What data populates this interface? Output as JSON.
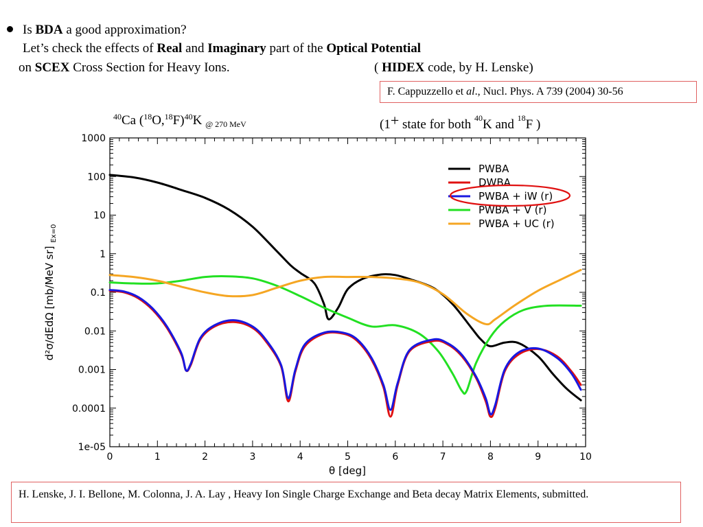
{
  "header": {
    "l1_is": "Is",
    "l1_bda": "BDA",
    "l1_rest": "a good approximation?",
    "l2_pre": "Let’s check the effects of",
    "l2_real": "Real",
    "l2_and": "and",
    "l2_imag": "Imaginary",
    "l2_mid": "part of the",
    "l2_opt": "Optical Potential",
    "l3_on": "on",
    "l3_scex": "SCEX",
    "l3_rest": "Cross Section for Heavy Ions.",
    "l3_paren": "(",
    "l3_hidex": "HIDEX",
    "l3_code": "code,  by H. Lenske)"
  },
  "ref_top": {
    "pre": "F. Cappuzzello et",
    "al": "al",
    "post": "., Nucl. Phys. A 739 (2004) 30-56"
  },
  "reaction": {
    "a40": "40",
    "ca": "Ca (",
    "a18a": "18",
    "o": "O,",
    "a18b": "18",
    "f": "F)",
    "a40b": "40",
    "k": "K",
    "energy": "@ 270 MeV"
  },
  "state_note": {
    "open": "(1",
    "plus": "+",
    "text": "state for both",
    "a40": "40",
    "k": "K  and",
    "a18": "18",
    "f": "F )"
  },
  "ref_bottom": "H. Lenske, J. I. Bellone, M. Colonna, J. A. Lay ,  Heavy Ion Single Charge Exchange and Beta decay Matrix Elements, submitted.",
  "chart_data": {
    "type": "line",
    "xlabel": "θ [deg]",
    "ylabel": "d²σ/dEdΩ [mb/MeV sr]",
    "ylabel_sub": "Ex=0",
    "xlim": [
      0,
      10
    ],
    "ylim": [
      1e-05,
      1000
    ],
    "yscale": "log",
    "x_ticks": [
      0,
      1,
      2,
      3,
      4,
      5,
      6,
      7,
      8,
      9,
      10
    ],
    "y_ticks": [
      1e-05,
      0.0001,
      0.001,
      0.01,
      0.1,
      1,
      10,
      100,
      1000
    ],
    "y_tick_labels": [
      "1e-05",
      "0.0001",
      "0.001",
      "0.01",
      "0.1",
      "1",
      "10",
      "100",
      "1000"
    ],
    "legend_position": "top-right",
    "highlighted_legend": "PWBA + iW (r)",
    "series": [
      {
        "name": "PWBA",
        "color": "#000000",
        "x": [
          0,
          0.5,
          1,
          1.5,
          2,
          2.5,
          3,
          3.5,
          3.8,
          4,
          4.3,
          4.5,
          4.6,
          4.8,
          5,
          5.3,
          5.7,
          6,
          6.3,
          6.8,
          7.2,
          7.6,
          7.8,
          8,
          8.3,
          8.6,
          9,
          9.3,
          9.6,
          9.9
        ],
        "y": [
          110,
          95,
          70,
          45,
          28,
          14,
          5,
          1.2,
          0.5,
          0.32,
          0.17,
          0.05,
          0.02,
          0.04,
          0.12,
          0.22,
          0.29,
          0.28,
          0.22,
          0.13,
          0.05,
          0.012,
          0.006,
          0.004,
          0.005,
          0.0048,
          0.0022,
          0.0008,
          0.00032,
          0.00016
        ]
      },
      {
        "name": "DWBA",
        "color": "#e01010",
        "x": [
          0,
          0.3,
          0.6,
          0.9,
          1.2,
          1.5,
          1.6,
          1.7,
          1.9,
          2.2,
          2.6,
          3,
          3.3,
          3.6,
          3.75,
          3.9,
          4.1,
          4.5,
          4.9,
          5.2,
          5.5,
          5.75,
          5.9,
          6.05,
          6.3,
          6.8,
          7.1,
          7.4,
          7.7,
          7.9,
          8,
          8.1,
          8.3,
          8.6,
          9,
          9.4,
          9.7,
          9.9
        ],
        "y": [
          0.11,
          0.1,
          0.07,
          0.035,
          0.012,
          0.0025,
          0.00095,
          0.0013,
          0.006,
          0.013,
          0.017,
          0.012,
          0.005,
          0.0012,
          0.00015,
          0.0009,
          0.004,
          0.0085,
          0.0085,
          0.0055,
          0.0018,
          0.00035,
          6e-05,
          0.0004,
          0.003,
          0.0055,
          0.0045,
          0.0022,
          0.0006,
          0.00015,
          6e-05,
          0.0001,
          0.0009,
          0.0025,
          0.0034,
          0.0022,
          0.0009,
          0.0004
        ]
      },
      {
        "name": "PWBA + iW (r)",
        "color": "#1818e0",
        "x": [
          0,
          0.3,
          0.6,
          0.9,
          1.2,
          1.5,
          1.6,
          1.7,
          1.9,
          2.2,
          2.6,
          3,
          3.3,
          3.6,
          3.75,
          3.9,
          4.1,
          4.5,
          4.9,
          5.2,
          5.5,
          5.75,
          5.9,
          6.05,
          6.3,
          6.8,
          7.1,
          7.4,
          7.7,
          7.9,
          8,
          8.1,
          8.3,
          8.6,
          9,
          9.4,
          9.7,
          9.9
        ],
        "y": [
          0.115,
          0.105,
          0.075,
          0.038,
          0.013,
          0.0027,
          0.00095,
          0.0014,
          0.0065,
          0.014,
          0.019,
          0.013,
          0.0055,
          0.0013,
          0.00018,
          0.001,
          0.0045,
          0.009,
          0.009,
          0.006,
          0.002,
          0.0004,
          9e-05,
          0.00045,
          0.0032,
          0.006,
          0.0048,
          0.0024,
          0.00065,
          0.00018,
          7e-05,
          0.00012,
          0.001,
          0.0028,
          0.0035,
          0.002,
          0.0008,
          0.0003
        ]
      },
      {
        "name": "PWBA + V (r)",
        "color": "#22e022",
        "x": [
          0,
          0.5,
          1,
          1.5,
          2,
          2.5,
          3,
          3.5,
          4,
          4.5,
          5,
          5.5,
          6,
          6.5,
          6.9,
          7.2,
          7.4,
          7.5,
          7.7,
          8,
          8.3,
          8.7,
          9.2,
          9.9
        ],
        "y": [
          0.18,
          0.17,
          0.17,
          0.2,
          0.25,
          0.26,
          0.23,
          0.15,
          0.08,
          0.04,
          0.022,
          0.013,
          0.014,
          0.0085,
          0.003,
          0.0008,
          0.00028,
          0.00028,
          0.0015,
          0.007,
          0.018,
          0.035,
          0.045,
          0.045
        ]
      },
      {
        "name": "PWBA + UC (r)",
        "color": "#f5a623",
        "x": [
          0,
          0.5,
          1,
          1.5,
          2,
          2.5,
          3,
          3.5,
          4,
          4.5,
          5,
          5.5,
          6,
          6.5,
          7,
          7.5,
          7.9,
          8.1,
          8.5,
          9,
          9.5,
          9.9
        ],
        "y": [
          0.28,
          0.25,
          0.2,
          0.14,
          0.1,
          0.08,
          0.085,
          0.13,
          0.2,
          0.25,
          0.25,
          0.25,
          0.23,
          0.18,
          0.09,
          0.028,
          0.015,
          0.02,
          0.045,
          0.11,
          0.22,
          0.38
        ]
      }
    ]
  }
}
